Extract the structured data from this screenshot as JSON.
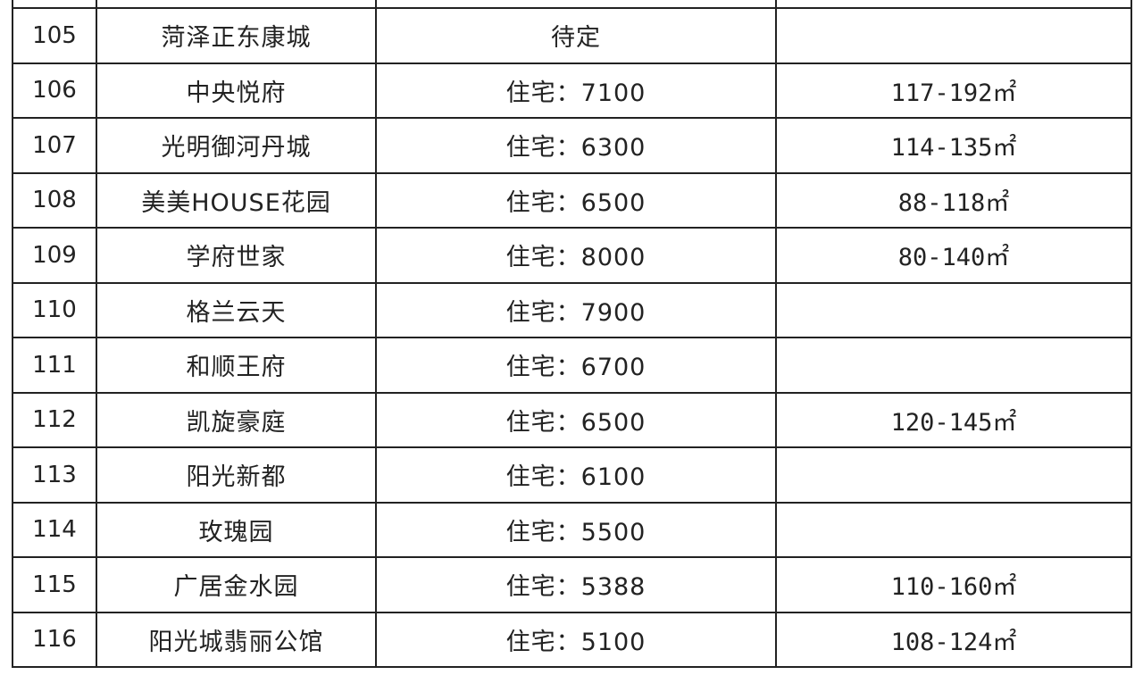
{
  "rows": [
    {
      "no": "105",
      "name": "菏泽正东康城",
      "price": "待定",
      "area": ""
    },
    {
      "no": "106",
      "name": "中央悦府",
      "price": "住宅：7100",
      "area": "117-192㎡"
    },
    {
      "no": "107",
      "name": "光明御河丹城",
      "price": "住宅：6300",
      "area": "114-135㎡"
    },
    {
      "no": "108",
      "name": "美美HOUSE花园",
      "price": "住宅：6500",
      "area": "88-118㎡"
    },
    {
      "no": "109",
      "name": "学府世家",
      "price": "住宅：8000",
      "area": "80-140㎡"
    },
    {
      "no": "110",
      "name": "格兰云天",
      "price": "住宅：7900",
      "area": ""
    },
    {
      "no": "111",
      "name": "和顺王府",
      "price": "住宅：6700",
      "area": ""
    },
    {
      "no": "112",
      "name": "凯旋豪庭",
      "price": "住宅：6500",
      "area": "120-145㎡"
    },
    {
      "no": "113",
      "name": "阳光新都",
      "price": "住宅：6100",
      "area": ""
    },
    {
      "no": "114",
      "name": "玫瑰园",
      "price": "住宅：5500",
      "area": ""
    },
    {
      "no": "115",
      "name": "广居金水园",
      "price": "住宅：5388",
      "area": "110-160㎡"
    },
    {
      "no": "116",
      "name": "阳光城翡丽公馆",
      "price": "住宅：5100",
      "area": "108-124㎡"
    }
  ]
}
